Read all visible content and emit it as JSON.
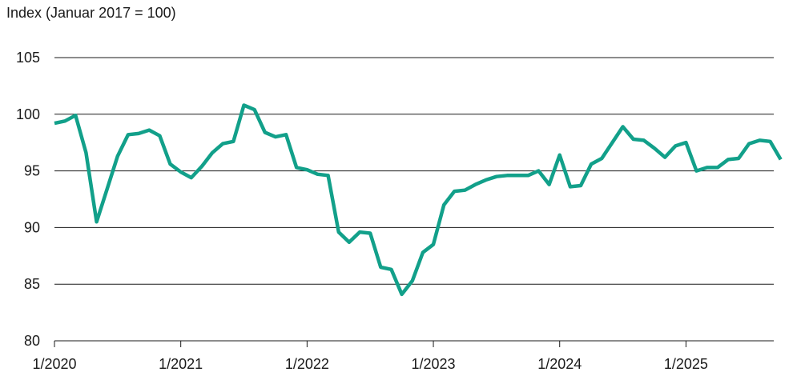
{
  "chart_data": {
    "type": "line",
    "ylabel": "Index (Januar 2017 = 100)",
    "xlabel": "",
    "ylim": [
      80,
      105
    ],
    "yticks": [
      80,
      85,
      90,
      95,
      100,
      105
    ],
    "xticks": [
      "1/2020",
      "1/2021",
      "1/2022",
      "1/2023",
      "1/2024",
      "1/2025"
    ],
    "grid": "horizontal",
    "x_start": "1/2020",
    "series": [
      {
        "color": "#12a08a",
        "values": [
          99.2,
          99.4,
          99.9,
          96.6,
          90.5,
          93.4,
          96.3,
          98.2,
          98.3,
          98.6,
          98.1,
          95.6,
          94.9,
          94.4,
          95.4,
          96.6,
          97.4,
          97.6,
          100.8,
          100.4,
          98.4,
          98.0,
          98.2,
          95.3,
          95.1,
          94.7,
          94.6,
          89.6,
          88.7,
          89.6,
          89.5,
          86.5,
          86.3,
          84.1,
          85.3,
          87.8,
          88.5,
          92.0,
          93.2,
          93.3,
          93.8,
          94.2,
          94.5,
          94.6,
          94.6,
          94.6,
          95.0,
          93.8,
          96.4,
          93.6,
          93.7,
          95.6,
          96.1,
          97.5,
          98.9,
          97.8,
          97.7,
          97.0,
          96.2,
          97.2,
          97.5,
          95.0,
          95.3,
          95.3,
          96.0,
          96.1,
          97.4,
          97.7,
          97.6,
          96.0
        ]
      }
    ]
  },
  "colors": {
    "line": "#12a08a",
    "grid": "#1a1a1a",
    "text": "#1a1a1a"
  }
}
